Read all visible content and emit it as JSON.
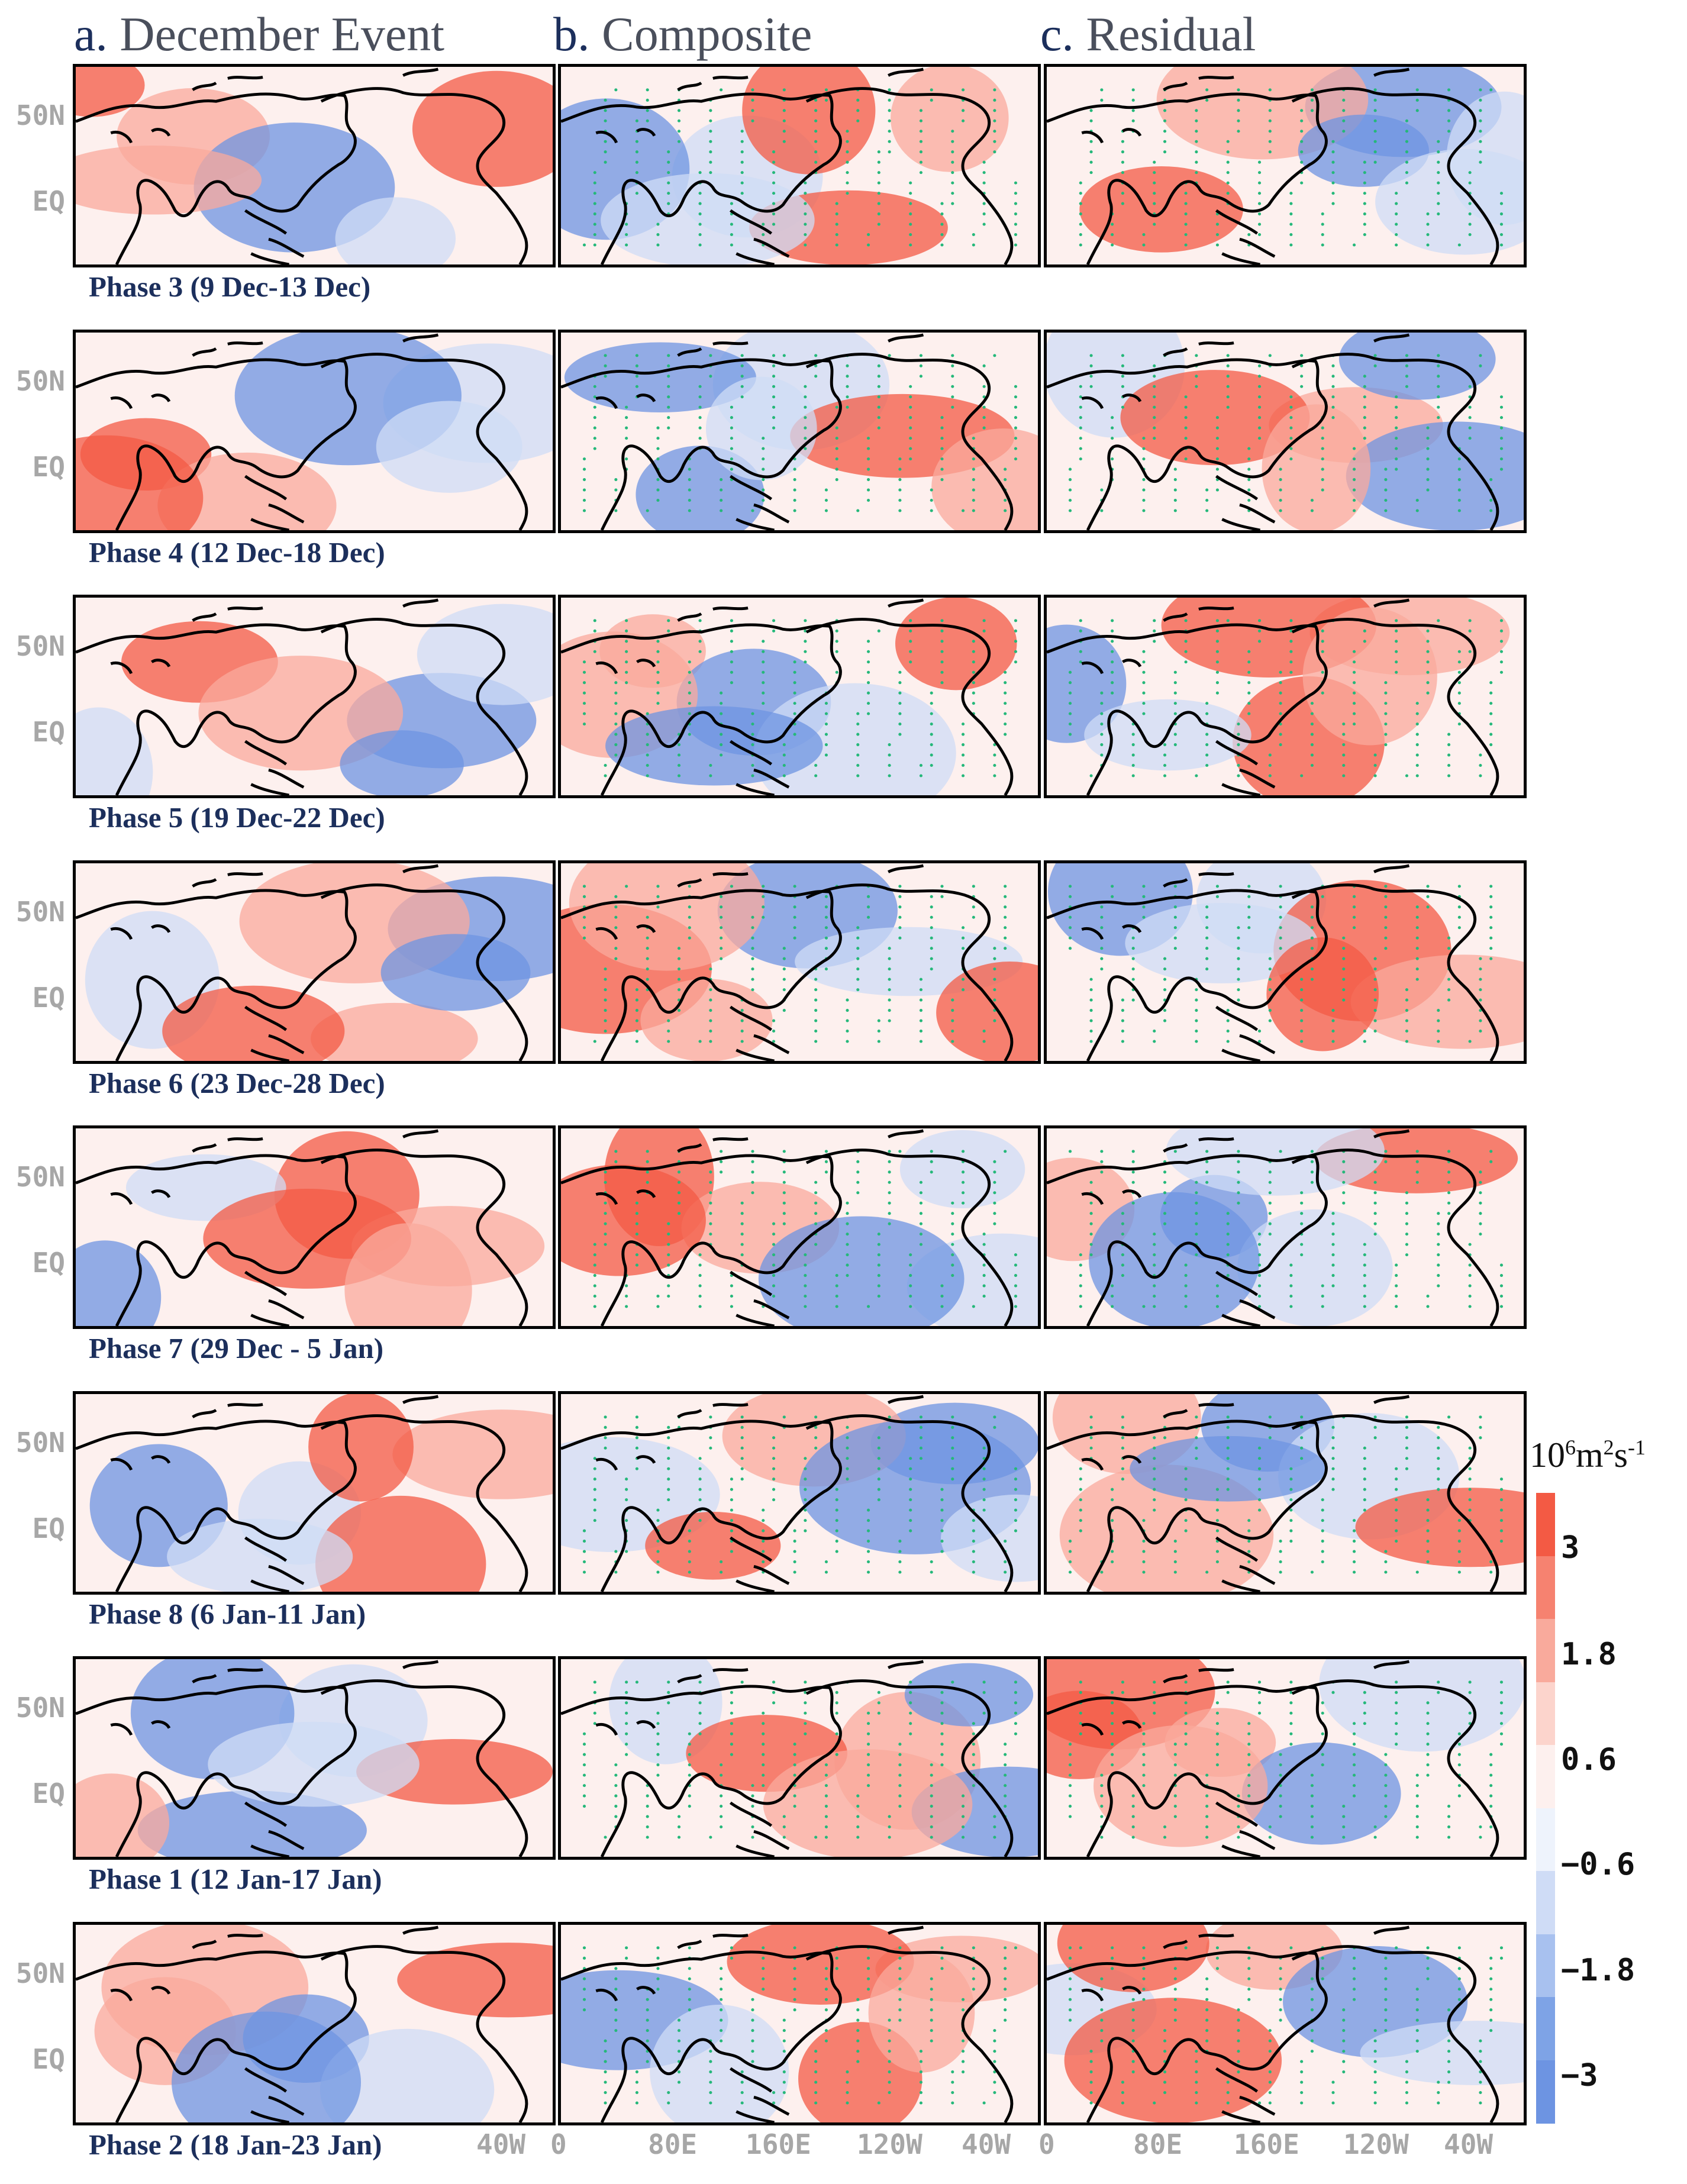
{
  "columns": [
    {
      "letter": "a.",
      "title": "December Event"
    },
    {
      "letter": "b.",
      "title": "Composite"
    },
    {
      "letter": "c.",
      "title": "Residual"
    }
  ],
  "rows": [
    {
      "label": "Phase 3 (9 Dec-13 Dec)"
    },
    {
      "label": "Phase 4 (12 Dec-18 Dec)"
    },
    {
      "label": "Phase 5 (19 Dec-22 Dec)"
    },
    {
      "label": "Phase 6 (23 Dec-28 Dec)"
    },
    {
      "label": "Phase 7 (29 Dec - 5 Jan)"
    },
    {
      "label": "Phase 8 (6 Jan-11 Jan)"
    },
    {
      "label": "Phase 1 (12 Jan-17 Jan)"
    },
    {
      "label": "Phase 2 (18 Jan-23 Jan)"
    }
  ],
  "lat_labels": [
    "50N",
    "EQ"
  ],
  "lon_labels_first": [
    "40W"
  ],
  "lon_labels": [
    "0",
    "80E",
    "160E",
    "120W",
    "40W"
  ],
  "colorbar": {
    "unit_base": "10",
    "unit_exp1": "6",
    "unit_mid": "m",
    "unit_exp2": "2",
    "unit_mid2": "s",
    "unit_exp3": "-1",
    "ticks": [
      "3",
      "1.8",
      "0.6",
      "−0.6",
      "−1.8",
      "−3"
    ],
    "colors": [
      "#f35a44",
      "#f68270",
      "#f9aa9c",
      "#fcd4cc",
      "#fdf0ee",
      "#eef3fc",
      "#cfdcf6",
      "#a8c1ef",
      "#7ea3e6",
      "#6d94e2"
    ]
  },
  "colors": {
    "positive_strong": "#f35a44",
    "positive_weak": "#f9aa9c",
    "negative_strong": "#6d94e2",
    "negative_weak": "#cfdcf6",
    "neutral": "#fdf0ee",
    "stipple": "#25b87a",
    "coastline": "#000000"
  }
}
